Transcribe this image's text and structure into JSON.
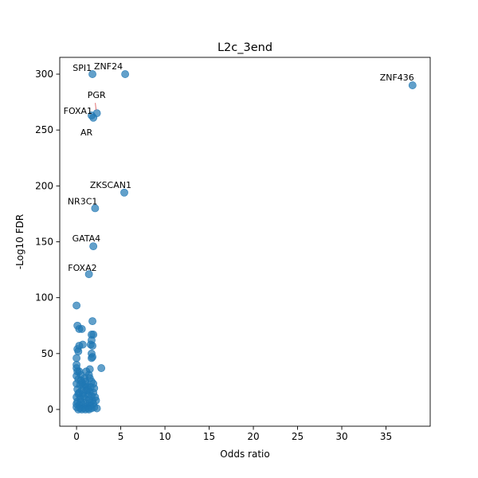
{
  "chart_data": {
    "type": "scatter",
    "title": "L2c_3end",
    "xlabel": "Odds ratio",
    "ylabel": "-Log10 FDR",
    "xlim": [
      -1.9,
      40.0
    ],
    "ylim": [
      -15,
      315
    ],
    "xticks": [
      0,
      5,
      10,
      15,
      20,
      25,
      30,
      35
    ],
    "yticks": [
      0,
      50,
      100,
      150,
      200,
      250,
      300
    ],
    "grid": false,
    "marker_color": "#1f77b4",
    "marker_alpha": 0.7,
    "points": [
      {
        "x": 1.8,
        "y": 300
      },
      {
        "x": 5.5,
        "y": 300
      },
      {
        "x": 38.0,
        "y": 290
      },
      {
        "x": 2.3,
        "y": 265
      },
      {
        "x": 1.7,
        "y": 263
      },
      {
        "x": 1.9,
        "y": 261
      },
      {
        "x": 5.4,
        "y": 194
      },
      {
        "x": 2.1,
        "y": 180
      },
      {
        "x": 1.9,
        "y": 146
      },
      {
        "x": 1.4,
        "y": 121
      },
      {
        "x": 0.0,
        "y": 93
      },
      {
        "x": 1.8,
        "y": 79
      },
      {
        "x": 0.1,
        "y": 75
      },
      {
        "x": 0.6,
        "y": 72
      },
      {
        "x": 0.3,
        "y": 72
      },
      {
        "x": 1.7,
        "y": 67
      },
      {
        "x": 1.9,
        "y": 67
      },
      {
        "x": 1.7,
        "y": 62
      },
      {
        "x": 1.6,
        "y": 58
      },
      {
        "x": 1.8,
        "y": 57
      },
      {
        "x": 0.7,
        "y": 58
      },
      {
        "x": 0.3,
        "y": 57
      },
      {
        "x": 0.1,
        "y": 54
      },
      {
        "x": 0.2,
        "y": 52
      },
      {
        "x": 1.7,
        "y": 50
      },
      {
        "x": 1.8,
        "y": 47
      },
      {
        "x": 1.7,
        "y": 46
      },
      {
        "x": 0.0,
        "y": 46
      },
      {
        "x": 0.0,
        "y": 40
      },
      {
        "x": 2.8,
        "y": 37
      },
      {
        "x": 0.0,
        "y": 37
      },
      {
        "x": 1.5,
        "y": 36
      },
      {
        "x": 0.1,
        "y": 34
      },
      {
        "x": 0.3,
        "y": 34
      },
      {
        "x": 1.4,
        "y": 31
      },
      {
        "x": 1.5,
        "y": 28
      },
      {
        "x": 0.0,
        "y": 30
      },
      {
        "x": 0.2,
        "y": 27
      },
      {
        "x": 0.5,
        "y": 26
      },
      {
        "x": 1.0,
        "y": 25
      },
      {
        "x": 1.7,
        "y": 25
      },
      {
        "x": 1.9,
        "y": 23
      },
      {
        "x": 0.0,
        "y": 23
      },
      {
        "x": 0.4,
        "y": 22
      },
      {
        "x": 0.8,
        "y": 21
      },
      {
        "x": 1.2,
        "y": 20
      },
      {
        "x": 1.6,
        "y": 20
      },
      {
        "x": 2.0,
        "y": 19
      },
      {
        "x": 0.1,
        "y": 18
      },
      {
        "x": 0.6,
        "y": 17
      },
      {
        "x": 1.1,
        "y": 17
      },
      {
        "x": 1.5,
        "y": 16
      },
      {
        "x": 1.9,
        "y": 15
      },
      {
        "x": 0.2,
        "y": 14
      },
      {
        "x": 0.7,
        "y": 14
      },
      {
        "x": 1.3,
        "y": 13
      },
      {
        "x": 1.7,
        "y": 12
      },
      {
        "x": 2.1,
        "y": 11
      },
      {
        "x": 0.0,
        "y": 11
      },
      {
        "x": 0.4,
        "y": 10
      },
      {
        "x": 0.9,
        "y": 10
      },
      {
        "x": 1.4,
        "y": 9
      },
      {
        "x": 1.8,
        "y": 8
      },
      {
        "x": 2.2,
        "y": 8
      },
      {
        "x": 0.1,
        "y": 7
      },
      {
        "x": 0.5,
        "y": 7
      },
      {
        "x": 1.0,
        "y": 6
      },
      {
        "x": 1.5,
        "y": 6
      },
      {
        "x": 1.9,
        "y": 5
      },
      {
        "x": 0.0,
        "y": 5
      },
      {
        "x": 0.3,
        "y": 4
      },
      {
        "x": 0.7,
        "y": 4
      },
      {
        "x": 1.2,
        "y": 3
      },
      {
        "x": 1.6,
        "y": 3
      },
      {
        "x": 2.0,
        "y": 2
      },
      {
        "x": 0.0,
        "y": 2
      },
      {
        "x": 0.4,
        "y": 1
      },
      {
        "x": 0.8,
        "y": 1
      },
      {
        "x": 1.3,
        "y": 1
      },
      {
        "x": 1.7,
        "y": 1
      },
      {
        "x": 2.3,
        "y": 1
      },
      {
        "x": 0.2,
        "y": 0
      },
      {
        "x": 0.6,
        "y": 0
      },
      {
        "x": 1.0,
        "y": 0
      },
      {
        "x": 1.4,
        "y": 0
      },
      {
        "x": 0.9,
        "y": 28
      },
      {
        "x": 0.5,
        "y": 31
      },
      {
        "x": 1.1,
        "y": 34
      },
      {
        "x": 0.8,
        "y": 12
      },
      {
        "x": 0.3,
        "y": 15
      },
      {
        "x": 1.0,
        "y": 22
      },
      {
        "x": 0.6,
        "y": 24
      },
      {
        "x": 1.3,
        "y": 18
      }
    ],
    "annotations": [
      {
        "text": "SPI1",
        "x": 1.8,
        "y": 300,
        "ha": "right"
      },
      {
        "text": "ZNF24",
        "x": 5.5,
        "y": 300,
        "ha": "right"
      },
      {
        "text": "ZNF436",
        "x": 38.0,
        "y": 290,
        "ha": "right"
      },
      {
        "text": "PGR",
        "x": 2.3,
        "y": 265,
        "ha": "right"
      },
      {
        "text": "FOXA1",
        "x": 1.7,
        "y": 263,
        "ha": "right"
      },
      {
        "text": "AR",
        "x": 1.9,
        "y": 261,
        "ha": "right"
      },
      {
        "text": "ZKSCAN1",
        "x": 5.4,
        "y": 194,
        "ha": "right"
      },
      {
        "text": "NR3C1",
        "x": 2.1,
        "y": 180,
        "ha": "right"
      },
      {
        "text": "GATA4",
        "x": 1.9,
        "y": 146,
        "ha": "right"
      },
      {
        "text": "FOXA2",
        "x": 1.4,
        "y": 121,
        "ha": "right"
      }
    ]
  }
}
